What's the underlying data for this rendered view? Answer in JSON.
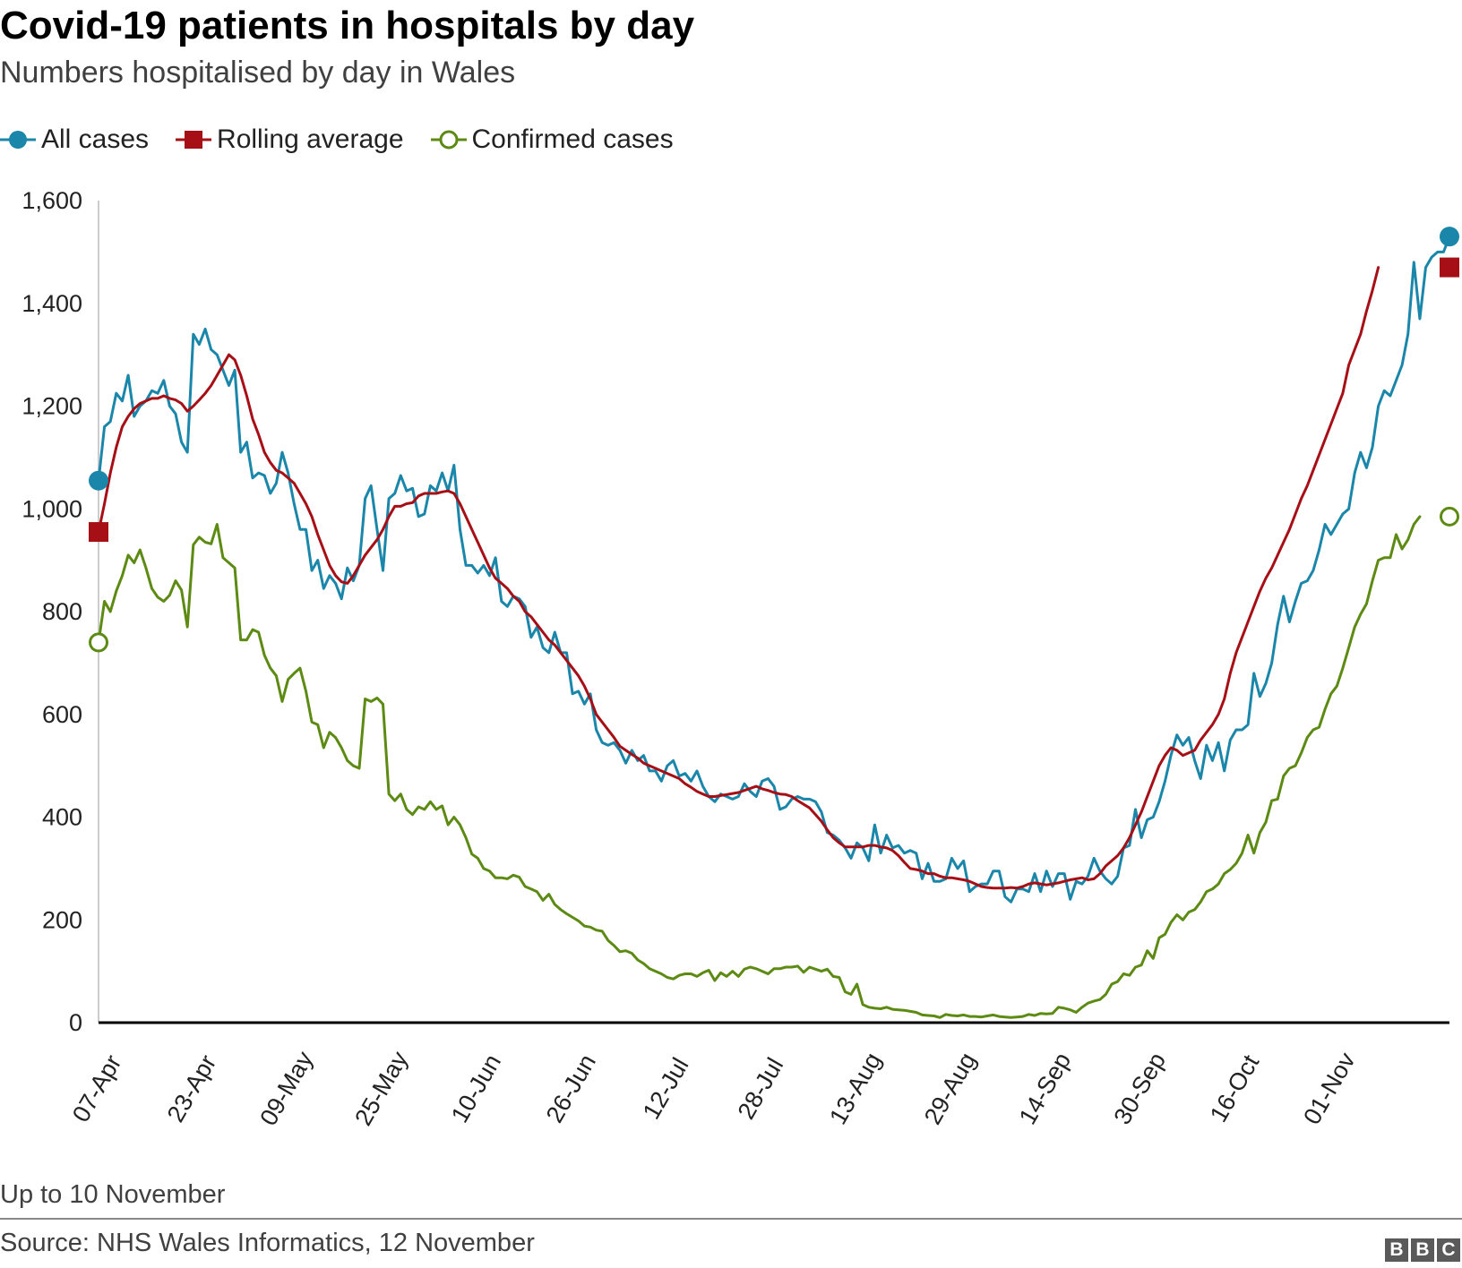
{
  "header": {
    "title": "Covid-19 patients in hospitals by day",
    "subtitle": "Numbers hospitalised by day in Wales"
  },
  "footer": {
    "note": "Up to 10 November",
    "source": "Source: NHS Wales Informatics, 12 November",
    "logo_letters": [
      "B",
      "B",
      "C"
    ]
  },
  "colors": {
    "all_cases": "#1a86aa",
    "rolling_average": "#a50f15",
    "confirmed_cases": "#5c8a12",
    "axis": "#000000",
    "axis_left": "#cccccc"
  },
  "chart_data": {
    "type": "line",
    "title": "Covid-19 patients in hospitals by day",
    "subtitle": "Numbers hospitalised by day in Wales",
    "x_start": "07-Apr",
    "x_end": "10-Nov",
    "x_ticks": [
      "07-Apr",
      "23-Apr",
      "09-May",
      "25-May",
      "10-Jun",
      "26-Jun",
      "12-Jul",
      "28-Jul",
      "13-Aug",
      "29-Aug",
      "14-Sep",
      "30-Sep",
      "16-Oct",
      "01-Nov"
    ],
    "y_ticks": [
      "0",
      "200",
      "400",
      "600",
      "800",
      "1,000",
      "1,200",
      "1,400",
      "1,600"
    ],
    "ylim": [
      0,
      1600
    ],
    "grid": false,
    "legend": "top-left",
    "series": [
      {
        "name": "All cases",
        "marker": "filled-circle",
        "values": [
          1055,
          1160,
          1170,
          1225,
          1210,
          1260,
          1180,
          1200,
          1210,
          1230,
          1225,
          1250,
          1200,
          1185,
          1130,
          1110,
          1340,
          1320,
          1350,
          1310,
          1300,
          1270,
          1240,
          1270,
          1110,
          1130,
          1060,
          1070,
          1065,
          1030,
          1050,
          1110,
          1070,
          1010,
          960,
          960,
          880,
          900,
          845,
          870,
          855,
          825,
          885,
          860,
          890,
          1020,
          1045,
          960,
          880,
          1020,
          1030,
          1065,
          1035,
          1040,
          985,
          990,
          1045,
          1035,
          1070,
          1035,
          1085,
          960,
          890,
          890,
          875,
          890,
          870,
          905,
          820,
          810,
          830,
          825,
          810,
          750,
          770,
          730,
          720,
          760,
          720,
          720,
          640,
          645,
          620,
          640,
          570,
          545,
          540,
          545,
          530,
          505,
          530,
          510,
          520,
          490,
          490,
          470,
          500,
          510,
          480,
          485,
          470,
          490,
          460,
          440,
          430,
          445,
          440,
          435,
          440,
          465,
          450,
          440,
          470,
          475,
          460,
          415,
          420,
          435,
          440,
          435,
          435,
          430,
          410,
          370,
          365,
          355,
          340,
          320,
          350,
          340,
          315,
          385,
          330,
          365,
          340,
          345,
          330,
          335,
          330,
          280,
          310,
          275,
          275,
          280,
          320,
          300,
          315,
          255,
          265,
          270,
          270,
          295,
          295,
          245,
          235,
          260,
          260,
          255,
          290,
          255,
          295,
          265,
          290,
          290,
          240,
          275,
          270,
          285,
          320,
          295,
          280,
          270,
          285,
          340,
          345,
          415,
          360,
          395,
          400,
          430,
          470,
          520,
          560,
          540,
          555,
          510,
          475,
          540,
          510,
          545,
          490,
          550,
          570,
          570,
          580,
          680,
          635,
          660,
          700,
          775,
          830,
          780,
          820,
          855,
          860,
          880,
          920,
          970,
          950,
          970,
          990,
          1000,
          1070,
          1110,
          1080,
          1120,
          1200,
          1230,
          1220,
          1250,
          1280,
          1340,
          1480,
          1370,
          1470,
          1490,
          1500,
          1500,
          1530
        ]
      },
      {
        "name": "Rolling average",
        "marker": "filled-square",
        "values": [
          955,
          1010,
          1070,
          1120,
          1160,
          1180,
          1195,
          1205,
          1210,
          1215,
          1215,
          1220,
          1215,
          1212,
          1205,
          1190,
          1200,
          1212,
          1225,
          1240,
          1260,
          1280,
          1300,
          1290,
          1260,
          1220,
          1175,
          1145,
          1110,
          1090,
          1075,
          1070,
          1060,
          1050,
          1030,
          1010,
          985,
          950,
          920,
          890,
          870,
          858,
          855,
          870,
          890,
          910,
          925,
          940,
          960,
          985,
          1005,
          1005,
          1010,
          1012,
          1025,
          1030,
          1030,
          1030,
          1033,
          1035,
          1030,
          1010,
          985,
          960,
          935,
          910,
          885,
          865,
          855,
          845,
          830,
          820,
          800,
          790,
          775,
          760,
          745,
          735,
          720,
          705,
          690,
          675,
          655,
          630,
          600,
          585,
          570,
          555,
          538,
          530,
          522,
          515,
          505,
          500,
          495,
          490,
          485,
          480,
          475,
          465,
          458,
          450,
          445,
          440,
          440,
          442,
          444,
          446,
          448,
          452,
          456,
          460,
          455,
          452,
          448,
          445,
          444,
          440,
          432,
          425,
          418,
          405,
          392,
          375,
          360,
          350,
          342,
          342,
          342,
          342,
          345,
          345,
          342,
          340,
          335,
          325,
          312,
          300,
          298,
          295,
          290,
          290,
          285,
          282,
          282,
          280,
          278,
          275,
          270,
          265,
          263,
          262,
          262,
          262,
          263,
          262,
          265,
          270,
          272,
          270,
          268,
          270,
          272,
          275,
          278,
          280,
          282,
          278,
          280,
          290,
          305,
          315,
          325,
          340,
          360,
          385,
          410,
          440,
          470,
          500,
          520,
          535,
          530,
          520,
          525,
          530,
          550,
          565,
          580,
          600,
          630,
          680,
          720,
          750,
          780,
          810,
          840,
          865,
          885,
          910,
          935,
          960,
          990,
          1020,
          1045,
          1075,
          1105,
          1135,
          1165,
          1195,
          1225,
          1280,
          1310,
          1340,
          1385,
          1425,
          1470
        ]
      },
      {
        "name": "Confirmed cases",
        "marker": "open-circle",
        "values": [
          740,
          820,
          800,
          840,
          870,
          910,
          895,
          920,
          885,
          845,
          828,
          820,
          832,
          860,
          842,
          770,
          930,
          945,
          935,
          932,
          970,
          905,
          895,
          885,
          745,
          745,
          765,
          760,
          715,
          690,
          675,
          625,
          668,
          680,
          690,
          645,
          585,
          580,
          535,
          565,
          555,
          535,
          510,
          500,
          495,
          630,
          625,
          632,
          620,
          445,
          432,
          445,
          415,
          405,
          420,
          415,
          430,
          415,
          422,
          385,
          400,
          385,
          360,
          328,
          320,
          300,
          295,
          282,
          282,
          280,
          287,
          283,
          265,
          260,
          255,
          238,
          250,
          230,
          220,
          212,
          205,
          198,
          188,
          186,
          180,
          178,
          160,
          150,
          138,
          140,
          135,
          122,
          115,
          105,
          100,
          95,
          88,
          85,
          92,
          95,
          95,
          90,
          97,
          102,
          82,
          97,
          90,
          100,
          90,
          104,
          108,
          105,
          100,
          95,
          105,
          105,
          108,
          108,
          110,
          98,
          108,
          104,
          100,
          104,
          90,
          88,
          60,
          55,
          75,
          35,
          30,
          28,
          27,
          30,
          26,
          25,
          24,
          22,
          20,
          15,
          14,
          13,
          10,
          16,
          14,
          13,
          15,
          12,
          12,
          11,
          13,
          15,
          12,
          11,
          10,
          11,
          12,
          16,
          14,
          18,
          17,
          18,
          30,
          28,
          25,
          20,
          30,
          38,
          42,
          45,
          55,
          75,
          80,
          95,
          92,
          108,
          112,
          140,
          125,
          165,
          172,
          195,
          210,
          200,
          215,
          220,
          235,
          255,
          260,
          270,
          290,
          298,
          310,
          330,
          365,
          330,
          370,
          390,
          432,
          435,
          480,
          495,
          500,
          525,
          555,
          570,
          575,
          610,
          640,
          655,
          690,
          730,
          770,
          795,
          815,
          860,
          900,
          905,
          905,
          950,
          922,
          940,
          970,
          985
        ]
      }
    ]
  }
}
